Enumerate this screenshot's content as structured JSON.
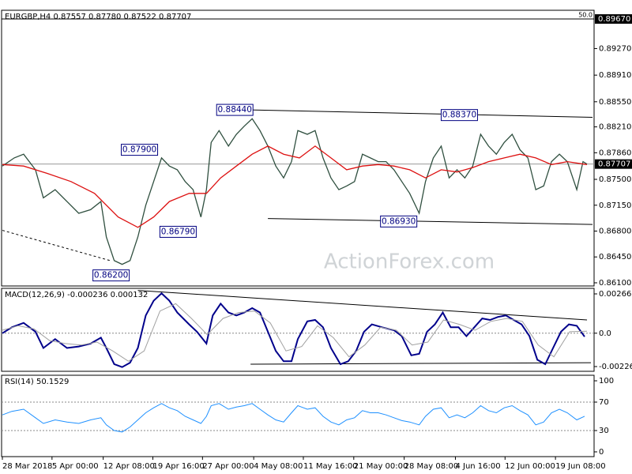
{
  "chart_data": [
    {
      "type": "line",
      "title": "EURGBP,H4 0.87557 0.87780 0.87522 0.87707",
      "watermark": "ActionForex.com",
      "xlim": [
        0,
        750
      ],
      "ylim": [
        0.86057,
        0.89788
      ],
      "yticks": [
        {
          "value": 0.8927,
          "label": "0.89270"
        },
        {
          "value": 0.8891,
          "label": "0.88910"
        },
        {
          "value": 0.8855,
          "label": "0.88550"
        },
        {
          "value": 0.8821,
          "label": "0.88210"
        },
        {
          "value": 0.8786,
          "label": "0.87860"
        },
        {
          "value": 0.875,
          "label": "0.87500"
        },
        {
          "value": 0.8715,
          "label": "0.87150"
        },
        {
          "value": 0.868,
          "label": "0.86800"
        },
        {
          "value": 0.8645,
          "label": "0.86450"
        },
        {
          "value": 0.861,
          "label": "0.86100"
        }
      ],
      "price_labels": [
        {
          "value": 0.8967,
          "label": "0.89670"
        },
        {
          "value": 0.87707,
          "label": "0.87707"
        }
      ],
      "fib_label": "50.0",
      "series": [
        {
          "color": "#2f4f3f",
          "x": [
            0,
            15,
            27,
            42,
            52,
            67,
            82,
            97,
            112,
            125,
            132,
            142,
            152,
            162,
            172,
            182,
            192,
            202,
            212,
            222,
            232,
            242,
            252,
            259,
            265,
            275,
            287,
            297,
            307,
            317,
            327,
            337,
            347,
            357,
            367,
            375,
            387,
            397,
            407,
            417,
            427,
            437,
            447,
            457,
            467,
            477,
            487,
            497,
            507,
            517,
            529,
            537,
            547,
            557,
            567,
            577,
            587,
            597,
            607,
            617,
            627,
            637,
            647,
            657,
            667,
            677,
            687,
            697,
            707,
            717,
            729,
            737,
            742
          ],
          "values": [
            0.8768,
            0.8779,
            0.8784,
            0.8763,
            0.8725,
            0.8736,
            0.872,
            0.8704,
            0.8709,
            0.872,
            0.8672,
            0.864,
            0.8635,
            0.864,
            0.8672,
            0.8715,
            0.8747,
            0.8779,
            0.8768,
            0.8763,
            0.8747,
            0.8736,
            0.8699,
            0.8736,
            0.88,
            0.8816,
            0.8795,
            0.8811,
            0.8822,
            0.8832,
            0.8816,
            0.8795,
            0.8768,
            0.8752,
            0.8774,
            0.8816,
            0.8811,
            0.8816,
            0.8779,
            0.8752,
            0.8736,
            0.8741,
            0.8747,
            0.8784,
            0.8779,
            0.8774,
            0.8774,
            0.8763,
            0.8747,
            0.8731,
            0.8704,
            0.8747,
            0.8779,
            0.8795,
            0.8752,
            0.8763,
            0.8752,
            0.8768,
            0.8811,
            0.8795,
            0.8784,
            0.88,
            0.8811,
            0.879,
            0.8779,
            0.8736,
            0.8741,
            0.8774,
            0.8784,
            0.8774,
            0.8736,
            0.8774,
            0.87707
          ]
        },
        {
          "color": "#dd1111",
          "x": [
            0,
            27,
            57,
            87,
            117,
            147,
            172,
            192,
            212,
            237,
            259,
            277,
            297,
            317,
            337,
            357,
            377,
            397,
            417,
            437,
            457,
            477,
            497,
            517,
            537,
            557,
            577,
            597,
            617,
            637,
            657,
            677,
            697,
            717,
            742
          ],
          "values": [
            0.877,
            0.8768,
            0.8758,
            0.8747,
            0.8731,
            0.8699,
            0.8685,
            0.8699,
            0.872,
            0.8731,
            0.8731,
            0.8752,
            0.8768,
            0.8784,
            0.8795,
            0.8784,
            0.8779,
            0.8795,
            0.8779,
            0.8763,
            0.8768,
            0.877,
            0.8768,
            0.8763,
            0.8752,
            0.8763,
            0.876,
            0.8766,
            0.8774,
            0.8779,
            0.8784,
            0.8779,
            0.877,
            0.8774,
            0.877
          ]
        }
      ],
      "trendlines": [
        {
          "x": [
            315,
            749
          ],
          "values": [
            0.8844,
            0.8834
          ],
          "dashed": false
        },
        {
          "x": [
            337,
            749
          ],
          "values": [
            0.8697,
            0.8689
          ],
          "dashed": false
        },
        {
          "x": [
            0,
            137
          ],
          "values": [
            0.8681,
            0.864
          ],
          "dashed": true
        }
      ],
      "annotations": [
        {
          "x": 295,
          "value": 0.8844,
          "label": "0.88440"
        },
        {
          "x": 174,
          "value": 0.879,
          "label": "0.87900"
        },
        {
          "x": 223,
          "value": 0.8679,
          "label": "0.86790"
        },
        {
          "x": 138,
          "value": 0.862,
          "label": "0.86200"
        },
        {
          "x": 580,
          "value": 0.8837,
          "label": "0.88370"
        },
        {
          "x": 503,
          "value": 0.8693,
          "label": "0.86930"
        }
      ]
    },
    {
      "type": "line",
      "title": "MACD(12,26,9) -0.000236 0.000132",
      "xlim": [
        0,
        750
      ],
      "ylim": [
        -0.002581,
        0.003038
      ],
      "yticks": [
        0.002663,
        {
          "value": 0,
          "label": "0.0"
        },
        -0.00226
      ],
      "dotted_levels": [
        0
      ],
      "series": [
        {
          "color": "#00008b",
          "width": 2,
          "x": [
            0,
            12,
            27,
            42,
            52,
            67,
            82,
            97,
            112,
            125,
            132,
            142,
            152,
            162,
            172,
            182,
            192,
            202,
            212,
            222,
            237,
            247,
            259,
            267,
            277,
            287,
            297,
            307,
            317,
            327,
            337,
            347,
            357,
            367,
            375,
            387,
            397,
            407,
            417,
            429,
            439,
            449,
            459,
            469,
            482,
            497,
            507,
            519,
            529,
            539,
            549,
            559,
            569,
            579,
            589,
            599,
            609,
            619,
            629,
            639,
            649,
            659,
            669,
            679,
            689,
            699,
            709,
            719,
            729,
            739
          ],
          "values": [
            0,
            0.0004,
            0.0007,
            0.0001,
            -0.001,
            -0.0004,
            -0.001,
            -0.0009,
            -0.0007,
            -0.0003,
            -0.001,
            -0.0021,
            -0.0023,
            -0.002,
            -0.001,
            0.0012,
            0.0022,
            0.0027,
            0.0022,
            0.0014,
            0.0006,
            0.0001,
            -0.0007,
            0.0012,
            0.002,
            0.0014,
            0.0012,
            0.0014,
            0.0017,
            0.0014,
            0.0001,
            -0.0012,
            -0.0019,
            -0.0019,
            -0.0004,
            0.0008,
            0.0009,
            0.0004,
            -0.001,
            -0.0021,
            -0.0019,
            -0.0012,
            0.0001,
            0.0006,
            0.0004,
            0.0002,
            -0.0002,
            -0.0015,
            -0.0014,
            0.0001,
            0.0006,
            0.0014,
            0.0004,
            0.0004,
            -0.0002,
            0.0004,
            0.001,
            0.0009,
            0.0011,
            0.0012,
            0.0009,
            0.0006,
            -0.0002,
            -0.0018,
            -0.0021,
            -0.001,
            0.0001,
            0.0006,
            0.0005,
            -0.000236
          ]
        },
        {
          "color": "#a0a0a0",
          "width": 1,
          "x": [
            0,
            20,
            40,
            60,
            80,
            100,
            120,
            140,
            160,
            180,
            200,
            220,
            240,
            260,
            280,
            300,
            320,
            340,
            360,
            380,
            400,
            420,
            440,
            460,
            480,
            500,
            520,
            540,
            560,
            580,
            600,
            620,
            640,
            660,
            680,
            700,
            720,
            742
          ],
          "values": [
            0.0002,
            0.0005,
            0.0003,
            -0.0005,
            -0.0007,
            -0.0008,
            -0.0006,
            -0.0012,
            -0.0019,
            -0.0012,
            0.0015,
            0.002,
            0.001,
            -0.0001,
            0.001,
            0.0014,
            0.0015,
            0.0007,
            -0.0012,
            -0.0009,
            0.0005,
            -0.0003,
            -0.0016,
            -0.0008,
            0.0004,
            0.0002,
            -0.0008,
            -0.0006,
            0.0009,
            0.0006,
            0.0002,
            0.0008,
            0.001,
            0.0008,
            -0.0008,
            -0.0016,
            0.0001,
            0.000132
          ]
        }
      ],
      "trendlines": [
        {
          "x": [
            172,
            742
          ],
          "values": [
            0.0029,
            0.0009
          ],
          "dashed": false
        },
        {
          "x": [
            315,
            747
          ],
          "values": [
            -0.0021,
            -0.002
          ],
          "dashed": false
        }
      ]
    },
    {
      "type": "line",
      "title": "RSI(14) 50.1529",
      "xlim": [
        0,
        750
      ],
      "ylim": [
        -6.7,
        107.8
      ],
      "yticks": [
        100,
        70,
        30,
        0
      ],
      "dotted_levels": [
        70,
        30
      ],
      "xticks": [
        {
          "value": 0,
          "label": "28 Mar 2018"
        },
        {
          "value": 63,
          "label": "5 Apr 00:00"
        },
        {
          "value": 128,
          "label": "12 Apr 08:00"
        },
        {
          "value": 191,
          "label": "19 Apr 16:00"
        },
        {
          "value": 254,
          "label": "27 Apr 00:00"
        },
        {
          "value": 319,
          "label": "4 May 08:00"
        },
        {
          "value": 382,
          "label": "11 May 16:00"
        },
        {
          "value": 446,
          "label": "21 May 00:00"
        },
        {
          "value": 510,
          "label": "28 May 08:00"
        },
        {
          "value": 575,
          "label": "4 Jun 16:00"
        },
        {
          "value": 638,
          "label": "12 Jun 00:00"
        },
        {
          "value": 702,
          "label": "19 Jun 08:00"
        }
      ],
      "series": [
        {
          "color": "#1e90ff",
          "width": 1,
          "x": [
            0,
            12,
            27,
            42,
            52,
            67,
            82,
            97,
            112,
            125,
            132,
            142,
            152,
            162,
            172,
            182,
            192,
            202,
            212,
            222,
            232,
            242,
            252,
            259,
            265,
            275,
            287,
            297,
            307,
            317,
            327,
            337,
            347,
            357,
            367,
            375,
            387,
            397,
            407,
            417,
            427,
            437,
            447,
            457,
            467,
            477,
            487,
            497,
            507,
            517,
            529,
            537,
            547,
            557,
            567,
            577,
            587,
            597,
            607,
            617,
            627,
            637,
            647,
            657,
            667,
            677,
            687,
            697,
            707,
            717,
            729,
            739
          ],
          "values": [
            52,
            57,
            60,
            48,
            40,
            45,
            42,
            40,
            45,
            48,
            38,
            30,
            28,
            35,
            45,
            55,
            62,
            68,
            62,
            58,
            50,
            45,
            40,
            50,
            65,
            68,
            60,
            63,
            65,
            68,
            60,
            52,
            45,
            42,
            55,
            65,
            60,
            62,
            50,
            42,
            38,
            45,
            48,
            58,
            55,
            55,
            52,
            48,
            44,
            42,
            38,
            50,
            60,
            62,
            48,
            52,
            48,
            55,
            65,
            58,
            55,
            62,
            65,
            58,
            52,
            38,
            42,
            55,
            60,
            55,
            45,
            50.1529
          ]
        }
      ]
    }
  ]
}
